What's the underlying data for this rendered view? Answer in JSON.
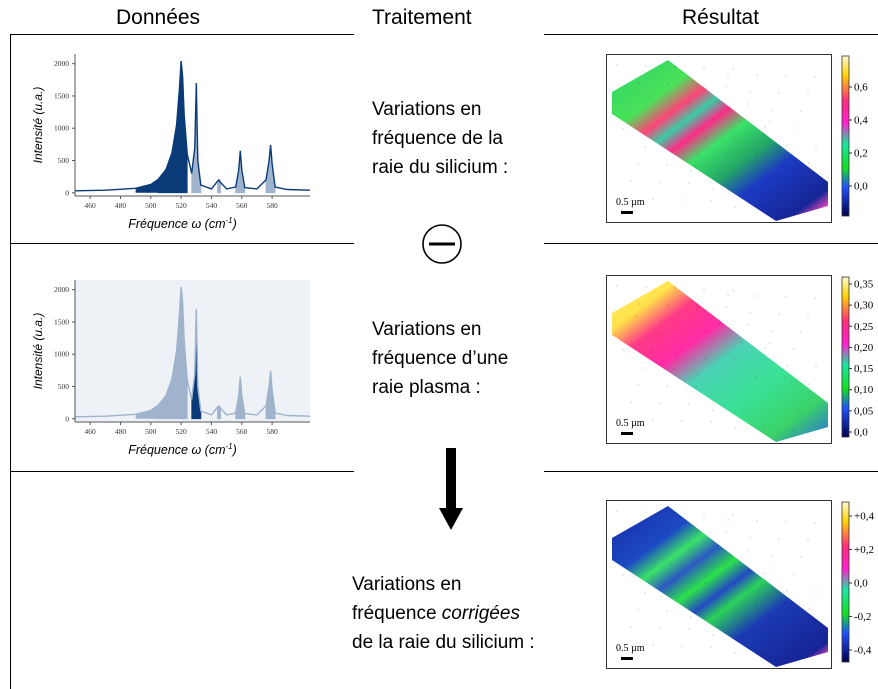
{
  "headers": {
    "data": "Données",
    "processing": "Traitement",
    "result": "Résultat"
  },
  "rows": [
    {
      "lines": [
        "Variations en",
        "fréquence de la",
        "raie du silicium :"
      ]
    },
    {
      "lines": [
        "Variations en",
        "fréquence d’une",
        "raie plasma :"
      ]
    },
    {
      "lines": [
        "Variations en",
        "fréquence",
        "corrigées",
        "de la raie du silicium :"
      ]
    }
  ],
  "spectrum": {
    "ylabel": "Intensité (u.a.)",
    "xlabel_prefix": "Fréquence ω (cm",
    "xlabel_sup": "-1",
    "xlabel_suffix": ")",
    "xticks": [
      "460",
      "480",
      "500",
      "520",
      "540",
      "560",
      "580"
    ],
    "yticks": [
      "0",
      "500",
      "1000",
      "1500",
      "2000"
    ],
    "dark_color": "#0a3a78",
    "light_color": "#9fb3cc"
  },
  "scalebar_label": "0.5 µm",
  "colorbars": [
    {
      "ticks": [
        "0,6",
        "0,4",
        "0,2",
        "0,0"
      ]
    },
    {
      "ticks": [
        "0,35",
        "0,30",
        "0,25",
        "0,20",
        "0,15",
        "0,10",
        "0,05",
        "0,0"
      ]
    },
    {
      "ticks": [
        "+0,4",
        "+0,2",
        "0,0",
        "-0,2",
        "-0,4"
      ]
    }
  ],
  "operator_icon": "minus-circle-icon",
  "arrow_icon": "down-arrow-icon",
  "chart_data": [
    {
      "type": "line",
      "title": "",
      "xlabel": "Fréquence ω (cm-1)",
      "ylabel": "Intensité (u.a.)",
      "xlim": [
        450,
        605
      ],
      "ylim": [
        -50,
        2150
      ],
      "highlighted_peak": "520",
      "x": [
        450,
        470,
        490,
        500,
        505,
        510,
        514,
        517,
        519,
        520,
        521,
        522,
        524,
        527,
        529,
        530,
        531,
        533,
        540,
        544,
        545,
        546,
        550,
        556,
        558,
        559,
        560,
        562,
        570,
        576,
        578,
        579,
        580,
        582,
        590,
        605
      ],
      "y": [
        30,
        40,
        70,
        130,
        210,
        360,
        620,
        1050,
        1650,
        2040,
        1800,
        1200,
        600,
        300,
        700,
        1700,
        500,
        120,
        60,
        180,
        200,
        160,
        60,
        90,
        350,
        650,
        350,
        80,
        60,
        200,
        500,
        740,
        450,
        90,
        50,
        40
      ]
    },
    {
      "type": "line",
      "title": "",
      "xlabel": "Fréquence ω (cm-1)",
      "ylabel": "Intensité (u.a.)",
      "xlim": [
        450,
        605
      ],
      "ylim": [
        -50,
        2150
      ],
      "highlighted_peak": "530",
      "x": [
        450,
        470,
        490,
        500,
        505,
        510,
        514,
        517,
        519,
        520,
        521,
        522,
        524,
        527,
        529,
        530,
        531,
        533,
        540,
        544,
        545,
        546,
        550,
        556,
        558,
        559,
        560,
        562,
        570,
        576,
        578,
        579,
        580,
        582,
        590,
        605
      ],
      "y": [
        30,
        40,
        70,
        130,
        210,
        360,
        620,
        1050,
        1650,
        2040,
        1800,
        1200,
        600,
        300,
        700,
        1700,
        500,
        120,
        60,
        180,
        200,
        160,
        60,
        90,
        350,
        650,
        350,
        80,
        60,
        200,
        500,
        740,
        450,
        90,
        50,
        40
      ]
    }
  ]
}
